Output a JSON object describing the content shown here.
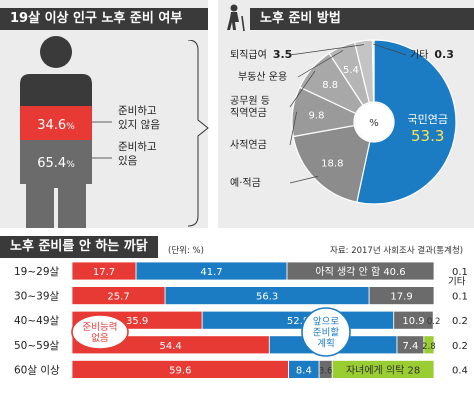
{
  "colors": {
    "red": "#e83a34",
    "blue": "#1b7cc4",
    "gray": "#6b6b6b",
    "lightgray": "#b0b0b0",
    "green": "#9acd32",
    "dark": "#3a3a3a",
    "panel": "#ececec"
  },
  "panel1": {
    "title": "19살 이상 인구 노후 준비 여부",
    "labels": [
      "준비하고\n있지 않음",
      "준비하고\n있음"
    ]
  },
  "panel2": {
    "title": "노후 준비 방법",
    "center_label": "%"
  },
  "panel3": {
    "title": "노후 준비를 안 하는 까닭",
    "unit": "(단위: %)",
    "source": "자료: 2017년 사회조사 결과(통계청)",
    "other_header": "기타",
    "red_callout": "준비능력\n없음",
    "blue_callout": "앞으로\n준비할\n계획"
  },
  "chart_data": [
    {
      "type": "bar",
      "title": "19살 이상 인구 노후 준비 여부",
      "categories": [
        "준비하고 있지 않음",
        "준비하고 있음"
      ],
      "values": [
        34.6,
        65.4
      ],
      "unit": "%"
    },
    {
      "type": "pie",
      "title": "노후 준비 방법",
      "unit": "%",
      "slices": [
        {
          "label": "국민연금",
          "value": 53.3,
          "color": "#1b7cc4"
        },
        {
          "label": "예·적금",
          "value": 18.8,
          "color": "#8c8c8c"
        },
        {
          "label": "사적연금",
          "value": 9.8,
          "color": "#9a9a9a"
        },
        {
          "label": "공무원 등\n직역연금",
          "value": 8.8,
          "color": "#a8a8a8"
        },
        {
          "label": "부동산 운용",
          "value": 5.4,
          "color": "#b5b5b5"
        },
        {
          "label": "퇴직급여",
          "value": 3.5,
          "color": "#c4c4c4"
        },
        {
          "label": "기타",
          "value": 0.3,
          "color": "#d6d6d6"
        }
      ]
    },
    {
      "type": "bar",
      "orientation": "horizontal-stacked",
      "title": "노후 준비를 안 하는 까닭",
      "unit": "%",
      "categories": [
        "19~29살",
        "30~39살",
        "40~49살",
        "50~59살",
        "60살 이상"
      ],
      "series": [
        {
          "name": "준비능력 없음",
          "values": [
            17.7,
            25.7,
            35.9,
            54.4,
            59.6
          ]
        },
        {
          "name": "앞으로 준비할 계획",
          "values": [
            41.7,
            56.3,
            52.8,
            35.2,
            8.4
          ]
        },
        {
          "name": "아직 생각 안 함",
          "values": [
            40.6,
            17.9,
            10.9,
            7.4,
            3.6
          ]
        },
        {
          "name": "자녀에게 의탁",
          "values": [
            0.0,
            0.0,
            0.2,
            2.8,
            28.0
          ]
        },
        {
          "name": "기타",
          "values": [
            0.1,
            0.1,
            0.2,
            0.2,
            0.4
          ]
        }
      ],
      "inline_labels": {
        "아직 생각 안 함": "아직 생각 안 함 40.6",
        "자녀에게 의탁": "자녀에게 의탁 28"
      }
    }
  ]
}
